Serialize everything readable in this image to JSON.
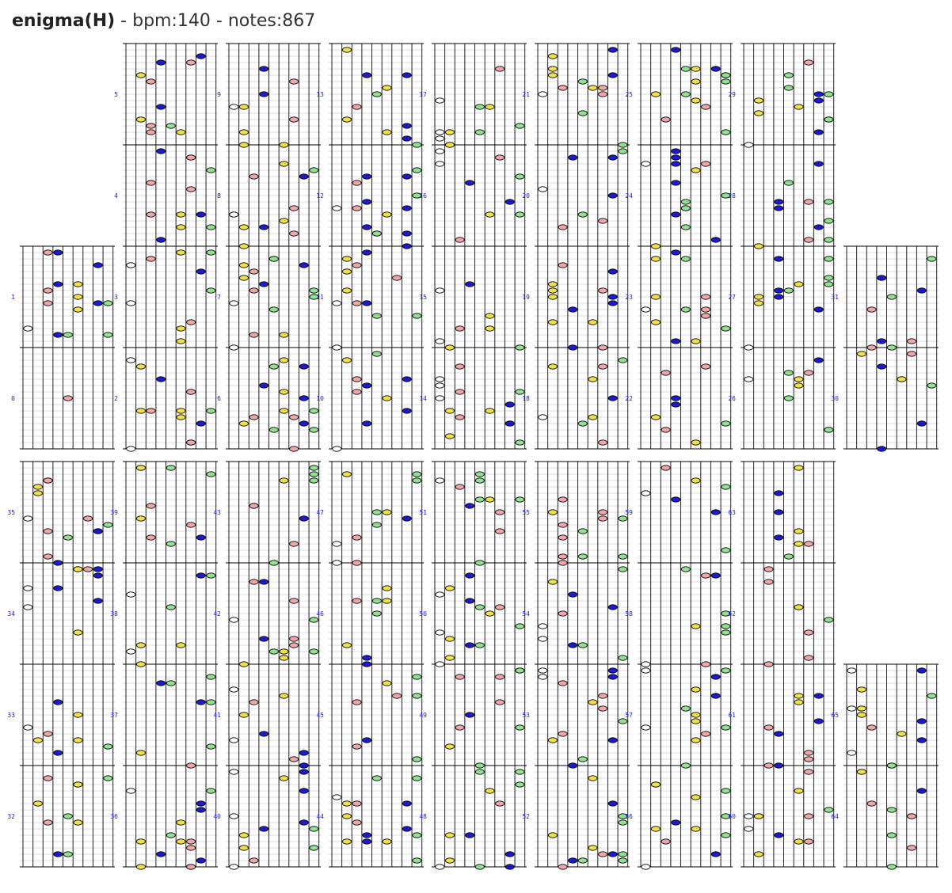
{
  "title": {
    "song": "enigma(H)",
    "sep1": " - ",
    "bpm": "bpm:140",
    "sep2": " - ",
    "notes": "notes:867"
  },
  "colors": {
    "white": "#ffffff",
    "yellow": "#f2e04a",
    "pink": "#f3a6a6",
    "blue": "#1a1ad6",
    "green": "#8fe28f",
    "measure": "#1a1ad6"
  },
  "columns": [
    {
      "measures": [
        "0",
        "1"
      ]
    },
    {
      "measures": [
        "2",
        "3",
        "4",
        "5"
      ]
    },
    {
      "measures": [
        "6",
        "7",
        "8",
        "9"
      ]
    },
    {
      "measures": [
        "10",
        "11",
        "12",
        "13"
      ]
    },
    {
      "measures": [
        "14",
        "15",
        "16",
        "17"
      ]
    },
    {
      "measures": [
        "18",
        "19",
        "20",
        "21"
      ]
    },
    {
      "measures": [
        "22",
        "23",
        "24",
        "25"
      ]
    },
    {
      "measures": [
        "26",
        "27",
        "28",
        "29"
      ]
    },
    {
      "measures": [
        "30",
        "31"
      ]
    },
    {
      "measures": [
        "32",
        "33",
        "34",
        "35"
      ]
    },
    {
      "measures": [
        "36",
        "37",
        "38",
        "39"
      ]
    },
    {
      "measures": [
        "40",
        "41",
        "42",
        "43"
      ]
    },
    {
      "measures": [
        "44",
        "45",
        "46",
        "47"
      ]
    },
    {
      "measures": [
        "48",
        "49",
        "50",
        "51"
      ]
    },
    {
      "measures": [
        "52",
        "53",
        "54",
        "55"
      ]
    },
    {
      "measures": [
        "56",
        "57",
        "58",
        "59"
      ]
    },
    {
      "measures": [
        "60",
        "61",
        "62",
        "63"
      ]
    },
    {
      "measures": [
        "64",
        "65"
      ]
    }
  ]
}
